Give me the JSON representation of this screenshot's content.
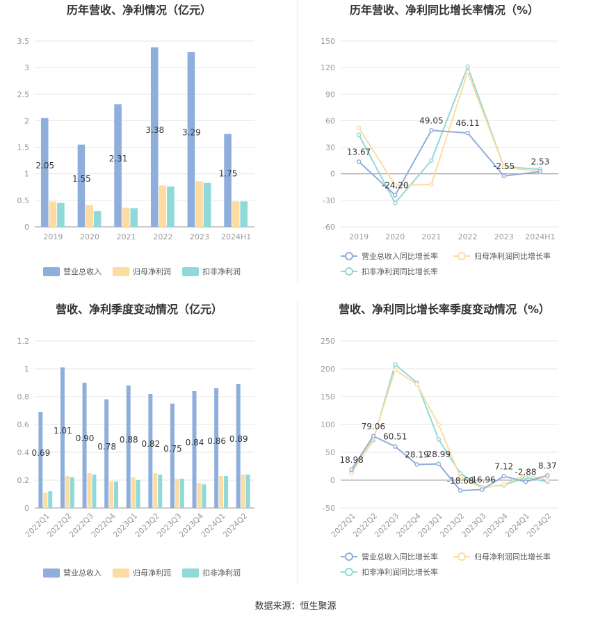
{
  "source_text": "数据来源：恒生聚源",
  "colors": {
    "revenue": "#8eaedb",
    "net": "#fddca2",
    "deducted": "#8fd9d9",
    "axis": "#cccccc",
    "grid": "#e6e6e6",
    "label": "#999999",
    "value": "#333333"
  },
  "chart_data": [
    {
      "type": "bar",
      "title": "历年营收、净利情况（亿元）",
      "categories": [
        "2019",
        "2020",
        "2021",
        "2022",
        "2023",
        "2024H1"
      ],
      "ylim": [
        0,
        3.5
      ],
      "yticks": [
        "0",
        "0.5",
        "1",
        "1.5",
        "2",
        "2.5",
        "3",
        "3.5"
      ],
      "series": [
        {
          "name": "营业总收入",
          "values": [
            2.05,
            1.55,
            2.31,
            3.38,
            3.29,
            1.75
          ],
          "labels": [
            "2.05",
            "1.55",
            "2.31",
            "3.38",
            "3.29",
            "1.75"
          ]
        },
        {
          "name": "归母净利润",
          "values": [
            0.48,
            0.41,
            0.36,
            0.78,
            0.86,
            0.48
          ]
        },
        {
          "name": "扣非净利润",
          "values": [
            0.45,
            0.3,
            0.35,
            0.76,
            0.83,
            0.48
          ]
        }
      ],
      "legend": "bottom",
      "grid": true
    },
    {
      "type": "line",
      "title": "历年营收、净利同比增长率情况（%）",
      "categories": [
        "2019",
        "2020",
        "2021",
        "2022",
        "2023",
        "2024H1"
      ],
      "ylim": [
        -60,
        150
      ],
      "yticks": [
        "-60",
        "-30",
        "0",
        "30",
        "60",
        "90",
        "120",
        "150"
      ],
      "series": [
        {
          "name": "营业总收入同比增长率",
          "values": [
            13.67,
            -24.2,
            49.05,
            46.11,
            -2.55,
            2.53
          ],
          "labels": [
            "13.67",
            "-24.20",
            "49.05",
            "46.11",
            "-2.55",
            "2.53"
          ]
        },
        {
          "name": "归母净利润同比增长率",
          "values": [
            52,
            -13,
            -12,
            115,
            8,
            2
          ]
        },
        {
          "name": "扣非净利润同比增长率",
          "values": [
            44,
            -33,
            15,
            121,
            8,
            5
          ]
        }
      ],
      "legend": "bottom",
      "grid": true
    },
    {
      "type": "bar",
      "title": "营收、净利季度变动情况（亿元）",
      "categories": [
        "2022Q1",
        "2022Q2",
        "2022Q3",
        "2022Q4",
        "2023Q1",
        "2023Q2",
        "2023Q3",
        "2023Q4",
        "2024Q1",
        "2024Q2"
      ],
      "ylim": [
        0,
        1.2
      ],
      "yticks": [
        "0",
        "0.2",
        "0.4",
        "0.6",
        "0.8",
        "1",
        "1.2"
      ],
      "series": [
        {
          "name": "营业总收入",
          "values": [
            0.69,
            1.01,
            0.9,
            0.78,
            0.88,
            0.82,
            0.75,
            0.84,
            0.86,
            0.89
          ],
          "labels": [
            "0.69",
            "1.01",
            "0.90",
            "0.78",
            "0.88",
            "0.82",
            "0.75",
            "0.84",
            "0.86",
            "0.89"
          ]
        },
        {
          "name": "归母净利润",
          "values": [
            0.11,
            0.23,
            0.25,
            0.19,
            0.22,
            0.25,
            0.21,
            0.18,
            0.23,
            0.24
          ]
        },
        {
          "name": "扣非净利润",
          "values": [
            0.12,
            0.22,
            0.24,
            0.19,
            0.2,
            0.24,
            0.21,
            0.17,
            0.23,
            0.24
          ]
        }
      ],
      "legend": "bottom",
      "grid": true
    },
    {
      "type": "line",
      "title": "营收、净利同比增长率季度变动情况（%）",
      "categories": [
        "2022Q1",
        "2022Q2",
        "2022Q3",
        "2022Q4",
        "2023Q1",
        "2023Q2",
        "2023Q3",
        "2023Q4",
        "2024Q1",
        "2024Q2"
      ],
      "ylim": [
        -50,
        250
      ],
      "yticks": [
        "-50",
        "0",
        "50",
        "100",
        "150",
        "200",
        "250"
      ],
      "series": [
        {
          "name": "营业总收入同比增长率",
          "values": [
            18.98,
            79.06,
            60.51,
            28.19,
            28.99,
            -18.68,
            -16.96,
            7.12,
            -2.88,
            8.37
          ],
          "labels": [
            "18.98",
            "79.06",
            "60.51",
            "28.19",
            "28.99",
            "-18.68",
            "-16.96",
            "7.12",
            "-2.88",
            "8.37"
          ]
        },
        {
          "name": "归母净利润同比增长率",
          "values": [
            12,
            75,
            198,
            172,
            100,
            5,
            -14,
            -8,
            10,
            0
          ]
        },
        {
          "name": "扣非净利润同比增长率",
          "values": [
            15,
            72,
            208,
            175,
            73,
            12,
            -13,
            -9,
            5,
            -3
          ]
        }
      ],
      "legend": "bottom",
      "grid": true
    }
  ]
}
